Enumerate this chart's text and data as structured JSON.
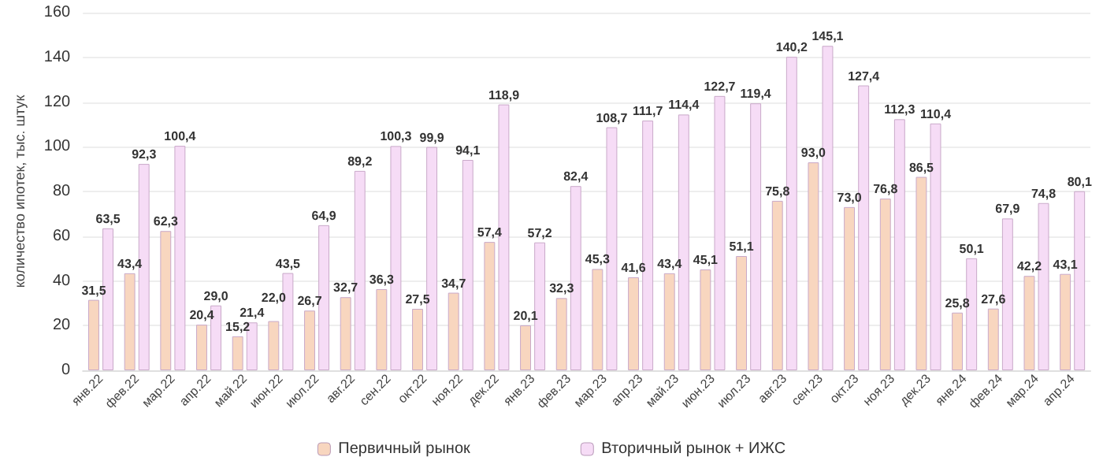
{
  "chart_data": {
    "type": "bar",
    "ylabel": "количество ипотек, тыс. штук",
    "categories": [
      "янв.22",
      "фев.22",
      "мар.22",
      "апр.22",
      "май.22",
      "июн.22",
      "июл.22",
      "авг.22",
      "сен.22",
      "окт.22",
      "ноя.22",
      "дек.22",
      "янв.23",
      "фев.23",
      "мар.23",
      "апр.23",
      "май.23",
      "июн.23",
      "июл.23",
      "авг.23",
      "сен.23",
      "окт.23",
      "ноя.23",
      "дек.23",
      "янв.24",
      "фев.24",
      "мар.24",
      "апр.24"
    ],
    "series": [
      {
        "name": "Первичный рынок",
        "color": "#f8d6bf",
        "values": [
          31.5,
          43.4,
          62.3,
          20.4,
          15.2,
          22.0,
          26.7,
          32.7,
          36.3,
          27.5,
          34.7,
          57.4,
          20.1,
          32.3,
          45.3,
          41.6,
          43.4,
          45.1,
          51.1,
          75.8,
          93.0,
          73.0,
          76.8,
          86.5,
          25.8,
          27.6,
          42.2,
          43.1
        ],
        "value_labels": [
          "31,5",
          "43,4",
          "62,3",
          "20,4",
          "15,2",
          "22,0",
          "26,7",
          "32,7",
          "36,3",
          "27,5",
          "34,7",
          "57,4",
          "20,1",
          "32,3",
          "45,3",
          "41,6",
          "43,4",
          "45,1",
          "51,1",
          "75,8",
          "93,0",
          "73,0",
          "76,8",
          "86,5",
          "25,8",
          "27,6",
          "42,2",
          "43,1"
        ]
      },
      {
        "name": "Вторичный рынок + ИЖС",
        "color": "#f6dcf6",
        "values": [
          63.5,
          92.3,
          100.4,
          29.0,
          21.4,
          43.5,
          64.9,
          89.2,
          100.3,
          99.9,
          94.1,
          118.9,
          57.2,
          82.4,
          108.7,
          111.7,
          114.4,
          122.7,
          119.4,
          140.2,
          145.1,
          127.4,
          112.3,
          110.4,
          50.1,
          67.9,
          74.8,
          80.1
        ],
        "value_labels": [
          "63,5",
          "92,3",
          "100,4",
          "29,0",
          "21,4",
          "43,5",
          "64,9",
          "89,2",
          "100,3",
          "99,9",
          "94,1",
          "118,9",
          "57,2",
          "82,4",
          "108,7",
          "111,7",
          "114,4",
          "122,7",
          "119,4",
          "140,2",
          "145,1",
          "127,4",
          "112,3",
          "110,4",
          "50,1",
          "67,9",
          "74,8",
          "80,1"
        ]
      }
    ],
    "ylim": [
      0,
      160
    ],
    "yticks": [
      0,
      20,
      40,
      60,
      80,
      100,
      120,
      140,
      160
    ],
    "grid": "y",
    "legend": "bottom"
  }
}
